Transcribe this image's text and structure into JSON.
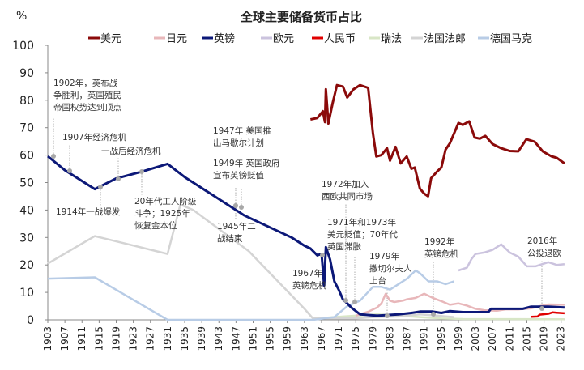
{
  "chart_data": {
    "type": "line",
    "title": "全球主要储备货币占比",
    "ylabel": "%",
    "xlabel": "",
    "xlim": [
      1903,
      2024
    ],
    "ylim": [
      0,
      100
    ],
    "yticks": [
      0,
      10,
      20,
      30,
      40,
      50,
      60,
      70,
      80,
      90,
      100
    ],
    "xticks": [
      1903,
      1907,
      1911,
      1915,
      1919,
      1923,
      1927,
      1931,
      1935,
      1939,
      1943,
      1947,
      1951,
      1955,
      1959,
      1963,
      1967,
      1971,
      1975,
      1979,
      1983,
      1987,
      1991,
      1995,
      1999,
      2003,
      2007,
      2011,
      2015,
      2019,
      2023
    ],
    "grid": false,
    "legend_position": "top",
    "series": [
      {
        "name": "美元",
        "color": "#8b0a0a",
        "points": [
          [
            1964.4,
            73
          ],
          [
            1966,
            73.5
          ],
          [
            1967.3,
            76
          ],
          [
            1967.8,
            72
          ],
          [
            1968,
            84
          ],
          [
            1968.6,
            71.5
          ],
          [
            1969.6,
            79
          ],
          [
            1970.6,
            85.5
          ],
          [
            1972,
            85
          ],
          [
            1973,
            81
          ],
          [
            1974.5,
            84
          ],
          [
            1976,
            85.5
          ],
          [
            1977.9,
            84.5
          ],
          [
            1979,
            68
          ],
          [
            1979.8,
            59.5
          ],
          [
            1981,
            60
          ],
          [
            1982.3,
            62.5
          ],
          [
            1983,
            58
          ],
          [
            1984.3,
            63
          ],
          [
            1985.5,
            57
          ],
          [
            1986.9,
            59.5
          ],
          [
            1988,
            55
          ],
          [
            1988.8,
            55.5
          ],
          [
            1990,
            47.8
          ],
          [
            1991,
            46
          ],
          [
            1991.9,
            45
          ],
          [
            1992.6,
            51.6
          ],
          [
            1994,
            54
          ],
          [
            1995,
            55.5
          ],
          [
            1996,
            62
          ],
          [
            1997,
            64.3
          ],
          [
            1998,
            68
          ],
          [
            1999,
            71.7
          ],
          [
            2000,
            71
          ],
          [
            2001.5,
            72.3
          ],
          [
            2002.8,
            66.4
          ],
          [
            2004,
            66
          ],
          [
            2005.3,
            67
          ],
          [
            2007,
            64
          ],
          [
            2009,
            62.5
          ],
          [
            2011,
            61.5
          ],
          [
            2013,
            61.4
          ],
          [
            2014.9,
            65.8
          ],
          [
            2016.8,
            64.9
          ],
          [
            2018.7,
            61.4
          ],
          [
            2020.7,
            59.6
          ],
          [
            2022,
            59
          ],
          [
            2023.8,
            57
          ]
        ]
      },
      {
        "name": "日元",
        "color": "#e8b7ba",
        "points": [
          [
            1975,
            1.5
          ],
          [
            1977,
            2.5
          ],
          [
            1978,
            3
          ],
          [
            1980,
            4.5
          ],
          [
            1981,
            6
          ],
          [
            1982,
            9.5
          ],
          [
            1983,
            7
          ],
          [
            1984,
            6.5
          ],
          [
            1986,
            7
          ],
          [
            1987,
            7.5
          ],
          [
            1989,
            8
          ],
          [
            1991,
            9.5
          ],
          [
            1993,
            8
          ],
          [
            1995,
            6.8
          ],
          [
            1997,
            5.5
          ],
          [
            1999,
            6
          ],
          [
            2001,
            5.2
          ],
          [
            2003,
            4
          ],
          [
            2005,
            3.5
          ],
          [
            2008,
            3.3
          ],
          [
            2010,
            3.8
          ],
          [
            2013,
            3.8
          ],
          [
            2016,
            4.2
          ],
          [
            2018,
            5
          ],
          [
            2020,
            5.6
          ],
          [
            2023.8,
            5.5
          ]
        ]
      },
      {
        "name": "英镑",
        "color": "#0c1878",
        "points": [
          [
            1903,
            59.6
          ],
          [
            1907,
            54.5
          ],
          [
            1914,
            47.6
          ],
          [
            1919,
            51.5
          ],
          [
            1925,
            54
          ],
          [
            1931,
            56.8
          ],
          [
            1935,
            52
          ],
          [
            1945,
            42
          ],
          [
            1949,
            38
          ],
          [
            1960,
            30
          ],
          [
            1963,
            27
          ],
          [
            1964.4,
            26
          ],
          [
            1966,
            23.5
          ],
          [
            1967,
            24
          ],
          [
            1967.6,
            12.5
          ],
          [
            1968,
            26.5
          ],
          [
            1969,
            22
          ],
          [
            1970,
            14
          ],
          [
            1971,
            11
          ],
          [
            1972,
            7.4
          ],
          [
            1973,
            6
          ],
          [
            1974,
            4.4
          ],
          [
            1976,
            2
          ],
          [
            1980,
            1.5
          ],
          [
            1985,
            2
          ],
          [
            1988,
            2.5
          ],
          [
            1990,
            3
          ],
          [
            1993,
            3
          ],
          [
            1995,
            2.5
          ],
          [
            1997,
            3.2
          ],
          [
            2000,
            2.8
          ],
          [
            2006,
            2.8
          ],
          [
            2006.6,
            4
          ],
          [
            2014,
            4
          ],
          [
            2016,
            4.8
          ],
          [
            2020,
            4.8
          ],
          [
            2023.8,
            4.5
          ]
        ]
      },
      {
        "name": "欧元",
        "color": "#cbc3de",
        "points": [
          [
            1999,
            18
          ],
          [
            2001,
            19
          ],
          [
            2002,
            22
          ],
          [
            2003,
            24
          ],
          [
            2005,
            24.5
          ],
          [
            2007,
            25.5
          ],
          [
            2009,
            27.5
          ],
          [
            2011,
            24.5
          ],
          [
            2013,
            23
          ],
          [
            2015,
            19.5
          ],
          [
            2017,
            19.5
          ],
          [
            2019,
            20.5
          ],
          [
            2020,
            21
          ],
          [
            2022,
            20
          ],
          [
            2023.8,
            20.3
          ]
        ]
      },
      {
        "name": "人民币",
        "color": "#e00000",
        "points": [
          [
            2016,
            1.1
          ],
          [
            2017.5,
            1.2
          ],
          [
            2018,
            1.9
          ],
          [
            2020,
            2.2
          ],
          [
            2021,
            2.7
          ],
          [
            2022,
            2.6
          ],
          [
            2023.8,
            2.4
          ]
        ]
      },
      {
        "name": "瑞法",
        "color": "#d8e6c6",
        "points": [
          [
            1965,
            0.4
          ],
          [
            1970,
            1
          ],
          [
            1975,
            1.5
          ],
          [
            1980,
            2
          ],
          [
            1985,
            1.5
          ],
          [
            1990,
            1
          ],
          [
            1995,
            0.5
          ],
          [
            2000,
            0.3
          ],
          [
            2023.8,
            0.2
          ]
        ]
      },
      {
        "name": "法国法郎",
        "color": "#d4d4d4",
        "points": [
          [
            1903,
            20.5
          ],
          [
            1914,
            30.5
          ],
          [
            1931,
            24
          ],
          [
            1934,
            42
          ],
          [
            1937,
            40
          ],
          [
            1950,
            25
          ],
          [
            1963,
            4
          ],
          [
            1965,
            0.5
          ],
          [
            1975,
            0.5
          ],
          [
            1979,
            1
          ],
          [
            1985,
            1.2
          ],
          [
            1990,
            2
          ],
          [
            1994,
            1.5
          ],
          [
            1998,
            1
          ]
        ]
      },
      {
        "name": "德国马克",
        "color": "#b8cce6",
        "points": [
          [
            1903,
            15
          ],
          [
            1914,
            15.5
          ],
          [
            1931,
            0
          ],
          [
            1965,
            0
          ],
          [
            1970,
            1
          ],
          [
            1973,
            5
          ],
          [
            1976,
            7
          ],
          [
            1979,
            12
          ],
          [
            1981,
            12
          ],
          [
            1983,
            11
          ],
          [
            1985,
            13
          ],
          [
            1987,
            15
          ],
          [
            1989,
            18
          ],
          [
            1990,
            17
          ],
          [
            1992,
            14
          ],
          [
            1994,
            14
          ],
          [
            1996,
            13
          ],
          [
            1998,
            14
          ]
        ]
      }
    ],
    "annotations": [
      {
        "lines": [
          "1902年，英布战",
          "争胜利，英国殖民",
          "帝国权势达到顶点"
        ]
      },
      {
        "lines": [
          "1907年经济危机"
        ]
      },
      {
        "lines": [
          "一战后经济危机"
        ]
      },
      {
        "lines": [
          "1914年一战爆发"
        ]
      },
      {
        "lines": [
          "20年代工人阶级",
          "斗争；1925年",
          "恢复金本位"
        ]
      },
      {
        "lines": [
          "1947年 美国推",
          "出马歇尔计划"
        ]
      },
      {
        "lines": [
          "1949年 英国政府",
          "宣布英镑贬值"
        ]
      },
      {
        "lines": [
          "1945年二",
          "战结束"
        ]
      },
      {
        "lines": [
          "1972年加入",
          "西欧共同市场"
        ]
      },
      {
        "lines": [
          "1971年和1973年",
          "美元贬值；70年代",
          "英国滞胀"
        ]
      },
      {
        "lines": [
          "1967年",
          "英镑危机"
        ]
      },
      {
        "lines": [
          "1979年",
          "撒切尔夫人",
          "上台"
        ]
      },
      {
        "lines": [
          "1992年",
          "英镑危机"
        ]
      },
      {
        "lines": [
          "2016年",
          "公投退欧"
        ]
      }
    ]
  }
}
